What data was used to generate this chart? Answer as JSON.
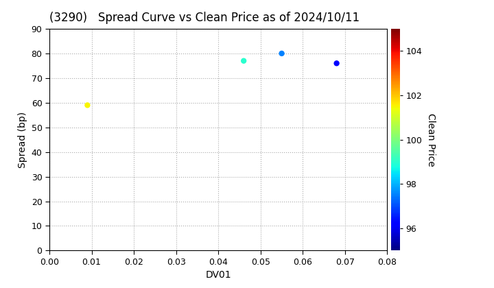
{
  "title": "(3290)   Spread Curve vs Clean Price as of 2024/10/11",
  "xlabel": "DV01",
  "ylabel": "Spread (bp)",
  "colorbar_label": "Clean Price",
  "xlim": [
    0.0,
    0.08
  ],
  "ylim": [
    0,
    90
  ],
  "yticks": [
    0,
    10,
    20,
    30,
    40,
    50,
    60,
    70,
    80,
    90
  ],
  "xticks": [
    0.0,
    0.01,
    0.02,
    0.03,
    0.04,
    0.05,
    0.06,
    0.07,
    0.08
  ],
  "cmap_range": [
    95,
    105
  ],
  "cmap_name": "jet",
  "points": [
    {
      "dv01": 0.009,
      "spread": 59,
      "clean_price": 101.5
    },
    {
      "dv01": 0.046,
      "spread": 77,
      "clean_price": 99.0
    },
    {
      "dv01": 0.055,
      "spread": 80,
      "clean_price": 97.5
    },
    {
      "dv01": 0.068,
      "spread": 76,
      "clean_price": 96.2
    }
  ],
  "marker_size": 25,
  "background_color": "#ffffff",
  "grid_color": "#aaaaaa",
  "title_fontsize": 12,
  "axis_fontsize": 10,
  "tick_fontsize": 9,
  "colorbar_ticks": [
    96,
    98,
    100,
    102,
    104
  ]
}
